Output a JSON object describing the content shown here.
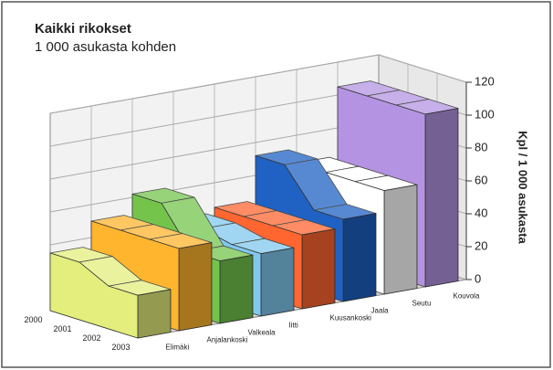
{
  "chart_data": {
    "type": "area3d",
    "title": "Kaikki rikokset",
    "subtitle": "1 000 asukasta kohden",
    "y_label": "Kpl / 1 000 asukasta",
    "categories": [
      "2000",
      "2001",
      "2002",
      "2003"
    ],
    "series": [
      {
        "name": "Elimäki",
        "color": "#e4ee7c",
        "values": [
          35,
          35,
          26,
          26
        ]
      },
      {
        "name": "Anjalankoski",
        "color": "#ffb52e",
        "values": [
          50,
          50,
          50,
          50
        ]
      },
      {
        "name": "Valkeala",
        "color": "#74c44c",
        "values": [
          62,
          62,
          38,
          38
        ]
      },
      {
        "name": "Iitti",
        "color": "#80c8ee",
        "values": [
          42,
          42,
          38,
          38
        ]
      },
      {
        "name": "Kuusankoski",
        "color": "#ff6630",
        "values": [
          45,
          45,
          45,
          45
        ]
      },
      {
        "name": "Jaala",
        "color": "#1f62c4",
        "values": [
          72,
          72,
          50,
          50
        ]
      },
      {
        "name": "Seutu",
        "color": "#ffffff",
        "values": [
          63,
          63,
          63,
          63
        ]
      },
      {
        "name": "Kouvola",
        "color": "#b494e2",
        "values": [
          105,
          105,
          105,
          105
        ]
      }
    ],
    "ylim": [
      0,
      120
    ],
    "yticks": [
      0,
      20,
      40,
      60,
      80,
      100,
      120
    ],
    "grid": true
  }
}
